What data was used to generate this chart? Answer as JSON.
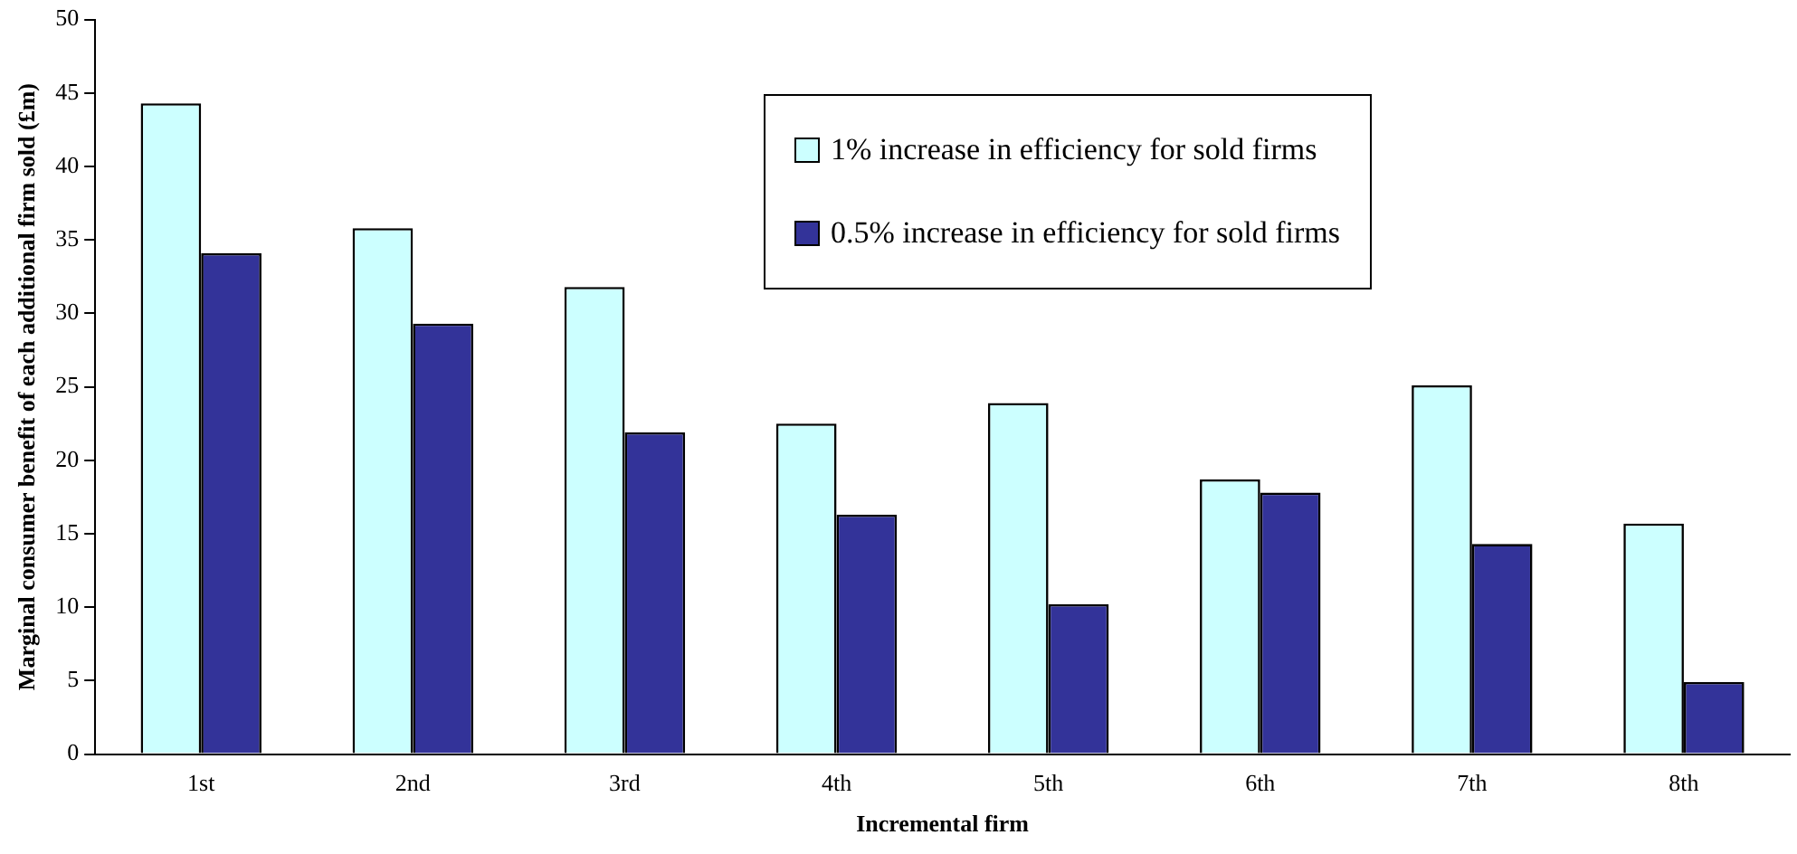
{
  "chart_data": {
    "type": "bar",
    "xlabel": "Incremental firm",
    "ylabel": "Marginal consumer benefit of each additional firm sold (£m)",
    "categories": [
      "1st",
      "2nd",
      "3rd",
      "4th",
      "5th",
      "6th",
      "7th",
      "8th"
    ],
    "series": [
      {
        "name": "1% increase in efficiency for sold firms",
        "color": "#ccffff",
        "values": [
          44.3,
          35.8,
          31.8,
          22.5,
          23.9,
          18.7,
          25.1,
          15.7
        ]
      },
      {
        "name": "0.5% increase in efficiency for sold firms",
        "color": "#333399",
        "values": [
          34.1,
          29.3,
          21.9,
          16.3,
          10.2,
          17.8,
          14.3,
          4.9
        ]
      }
    ],
    "ylim": [
      0,
      50
    ],
    "yticks": [
      0,
      5,
      10,
      15,
      20,
      25,
      30,
      35,
      40,
      45,
      50
    ],
    "grid": false,
    "legend": "top right"
  }
}
